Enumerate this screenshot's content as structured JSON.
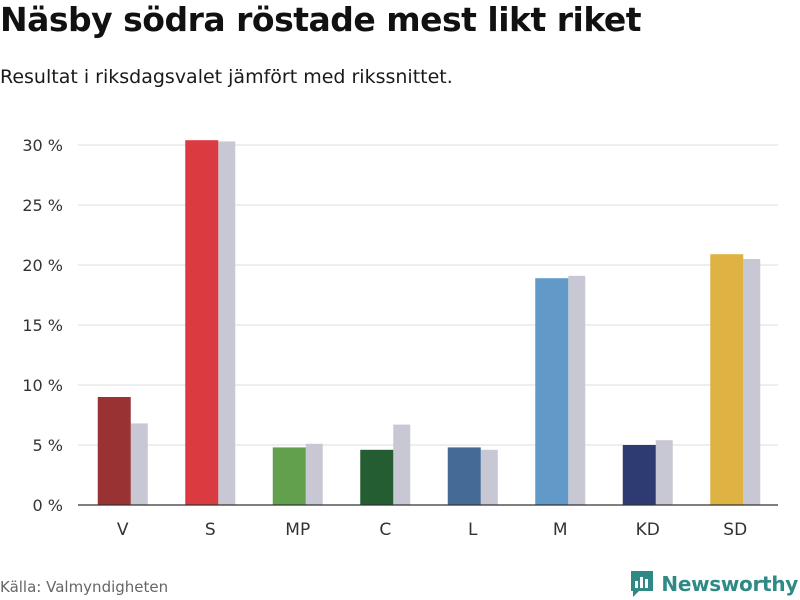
{
  "title": "Näsby södra röstade mest likt riket",
  "subtitle": "Resultat i riksdagsvalet jämfört med rikssnittet.",
  "source": "Källa: Valmyndigheten",
  "brand": "Newsworthy",
  "colors": {
    "V": "#993333",
    "S": "#da3a40",
    "MP": "#62a04e",
    "C": "#235d31",
    "L": "#446b96",
    "M": "#6199c8",
    "KD": "#2e3b72",
    "SD": "#deb343",
    "comparison": "#c8c7d4",
    "grid": "#dddddd",
    "brand": "#2f8a86"
  },
  "chart_data": {
    "type": "bar",
    "categories": [
      "V",
      "S",
      "MP",
      "C",
      "L",
      "M",
      "KD",
      "SD"
    ],
    "series": [
      {
        "values": [
          9.0,
          30.4,
          4.8,
          4.6,
          4.8,
          18.9,
          5.0,
          20.9
        ]
      },
      {
        "values": [
          6.8,
          30.3,
          5.1,
          6.7,
          4.6,
          19.1,
          5.4,
          20.5
        ]
      }
    ],
    "yticks": [
      "0 %",
      "5 %",
      "10 %",
      "15 %",
      "20 %",
      "25 %",
      "30 %"
    ],
    "ylim": [
      0,
      30
    ],
    "grid": true
  }
}
